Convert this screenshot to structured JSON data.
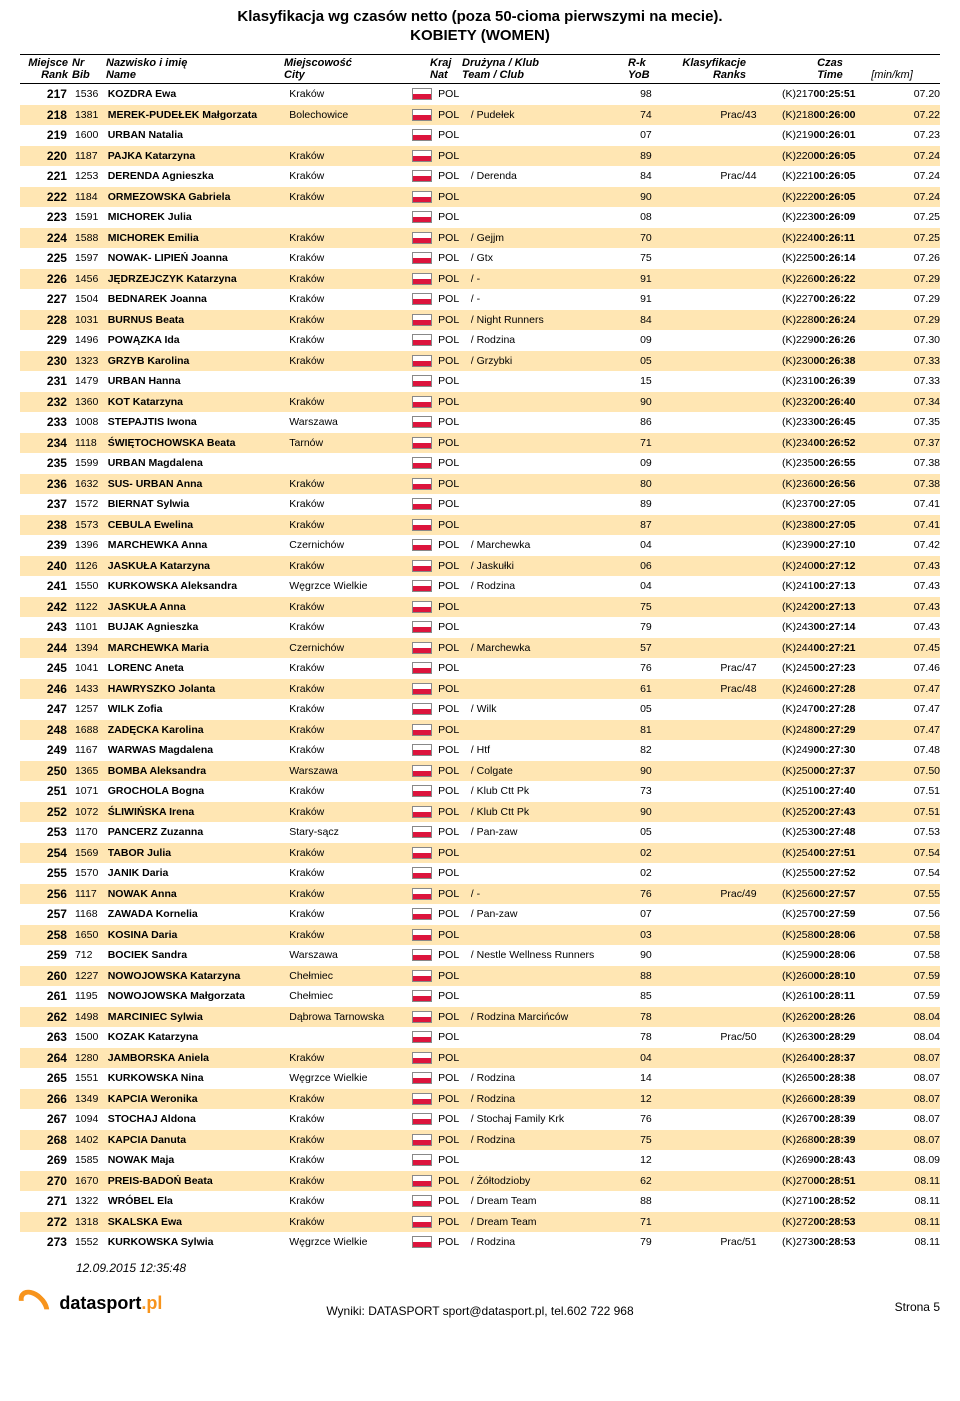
{
  "title": "Klasyfikacja wg czasów netto (poza 50-cioma pierwszymi na mecie).",
  "subtitle": "KOBIETY (WOMEN)",
  "columns": {
    "rank": {
      "pl": "Miejsce",
      "en": "Rank"
    },
    "bib": {
      "pl": "Nr",
      "en": "Bib"
    },
    "name": {
      "pl": "Nazwisko i imię",
      "en": "Name"
    },
    "city": {
      "pl": "Miejscowość",
      "en": "City"
    },
    "nat": {
      "pl": "Kraj",
      "en": "Nat"
    },
    "team": {
      "pl": "Drużyna / Klub",
      "en": "Team / Club"
    },
    "yob": {
      "pl": "R-k",
      "en": "YoB"
    },
    "ranks": {
      "pl": "Klasyfikacje",
      "en": "Ranks"
    },
    "time": {
      "pl": "Czas",
      "en": "Time"
    },
    "pace": "[min/km]"
  },
  "rows": [
    {
      "rank": 217,
      "bib": 1536,
      "name": "KOZDRA Ewa",
      "city": "Kraków",
      "nat": "POL",
      "team": "",
      "yob": "98",
      "ranks": "",
      "kcode": "(K)217",
      "time": "00:25:51",
      "pace": "07.20"
    },
    {
      "rank": 218,
      "bib": 1381,
      "name": "MEREK-PUDEŁEK Małgorzata",
      "city": "Bolechowice",
      "nat": "POL",
      "team": "/ Pudełek",
      "yob": "74",
      "ranks": "Prac/43",
      "kcode": "(K)218",
      "time": "00:26:00",
      "pace": "07.22"
    },
    {
      "rank": 219,
      "bib": 1600,
      "name": "URBAN Natalia",
      "city": "",
      "nat": "POL",
      "team": "",
      "yob": "07",
      "ranks": "",
      "kcode": "(K)219",
      "time": "00:26:01",
      "pace": "07.23"
    },
    {
      "rank": 220,
      "bib": 1187,
      "name": "PAJKA Katarzyna",
      "city": "Kraków",
      "nat": "POL",
      "team": "",
      "yob": "89",
      "ranks": "",
      "kcode": "(K)220",
      "time": "00:26:05",
      "pace": "07.24"
    },
    {
      "rank": 221,
      "bib": 1253,
      "name": "DERENDA Agnieszka",
      "city": "Kraków",
      "nat": "POL",
      "team": "/ Derenda",
      "yob": "84",
      "ranks": "Prac/44",
      "kcode": "(K)221",
      "time": "00:26:05",
      "pace": "07.24"
    },
    {
      "rank": 222,
      "bib": 1184,
      "name": "ORMEZOWSKA Gabriela",
      "city": "Kraków",
      "nat": "POL",
      "team": "",
      "yob": "90",
      "ranks": "",
      "kcode": "(K)222",
      "time": "00:26:05",
      "pace": "07.24"
    },
    {
      "rank": 223,
      "bib": 1591,
      "name": "MICHOREK Julia",
      "city": "",
      "nat": "POL",
      "team": "",
      "yob": "08",
      "ranks": "",
      "kcode": "(K)223",
      "time": "00:26:09",
      "pace": "07.25"
    },
    {
      "rank": 224,
      "bib": 1588,
      "name": "MICHOREK Emilia",
      "city": "Kraków",
      "nat": "POL",
      "team": "/ Gejjm",
      "yob": "70",
      "ranks": "",
      "kcode": "(K)224",
      "time": "00:26:11",
      "pace": "07.25"
    },
    {
      "rank": 225,
      "bib": 1597,
      "name": "NOWAK- LIPIEŃ Joanna",
      "city": "Kraków",
      "nat": "POL",
      "team": "/ Gtx",
      "yob": "75",
      "ranks": "",
      "kcode": "(K)225",
      "time": "00:26:14",
      "pace": "07.26"
    },
    {
      "rank": 226,
      "bib": 1456,
      "name": "JĘDRZEJCZYK Katarzyna",
      "city": "Kraków",
      "nat": "POL",
      "team": "/ -",
      "yob": "91",
      "ranks": "",
      "kcode": "(K)226",
      "time": "00:26:22",
      "pace": "07.29"
    },
    {
      "rank": 227,
      "bib": 1504,
      "name": "BEDNAREK Joanna",
      "city": "Kraków",
      "nat": "POL",
      "team": "/ -",
      "yob": "91",
      "ranks": "",
      "kcode": "(K)227",
      "time": "00:26:22",
      "pace": "07.29"
    },
    {
      "rank": 228,
      "bib": 1031,
      "name": "BURNUS Beata",
      "city": "Kraków",
      "nat": "POL",
      "team": "/ Night Runners",
      "yob": "84",
      "ranks": "",
      "kcode": "(K)228",
      "time": "00:26:24",
      "pace": "07.29"
    },
    {
      "rank": 229,
      "bib": 1496,
      "name": "POWĄZKA Ida",
      "city": "Kraków",
      "nat": "POL",
      "team": "/ Rodzina",
      "yob": "09",
      "ranks": "",
      "kcode": "(K)229",
      "time": "00:26:26",
      "pace": "07.30"
    },
    {
      "rank": 230,
      "bib": 1323,
      "name": "GRZYB Karolina",
      "city": "Kraków",
      "nat": "POL",
      "team": "/ Grzybki",
      "yob": "05",
      "ranks": "",
      "kcode": "(K)230",
      "time": "00:26:38",
      "pace": "07.33"
    },
    {
      "rank": 231,
      "bib": 1479,
      "name": "URBAN Hanna",
      "city": "",
      "nat": "POL",
      "team": "",
      "yob": "15",
      "ranks": "",
      "kcode": "(K)231",
      "time": "00:26:39",
      "pace": "07.33"
    },
    {
      "rank": 232,
      "bib": 1360,
      "name": "KOT Katarzyna",
      "city": "Kraków",
      "nat": "POL",
      "team": "",
      "yob": "90",
      "ranks": "",
      "kcode": "(K)232",
      "time": "00:26:40",
      "pace": "07.34"
    },
    {
      "rank": 233,
      "bib": 1008,
      "name": "STEPAJTIS Iwona",
      "city": "Warszawa",
      "nat": "POL",
      "team": "",
      "yob": "86",
      "ranks": "",
      "kcode": "(K)233",
      "time": "00:26:45",
      "pace": "07.35"
    },
    {
      "rank": 234,
      "bib": 1118,
      "name": "ŚWIĘTOCHOWSKA Beata",
      "city": "Tarnów",
      "nat": "POL",
      "team": "",
      "yob": "71",
      "ranks": "",
      "kcode": "(K)234",
      "time": "00:26:52",
      "pace": "07.37"
    },
    {
      "rank": 235,
      "bib": 1599,
      "name": "URBAN Magdalena",
      "city": "",
      "nat": "POL",
      "team": "",
      "yob": "09",
      "ranks": "",
      "kcode": "(K)235",
      "time": "00:26:55",
      "pace": "07.38"
    },
    {
      "rank": 236,
      "bib": 1632,
      "name": "SUS- URBAN Anna",
      "city": "Kraków",
      "nat": "POL",
      "team": "",
      "yob": "80",
      "ranks": "",
      "kcode": "(K)236",
      "time": "00:26:56",
      "pace": "07.38"
    },
    {
      "rank": 237,
      "bib": 1572,
      "name": "BIERNAT Sylwia",
      "city": "Kraków",
      "nat": "POL",
      "team": "",
      "yob": "89",
      "ranks": "",
      "kcode": "(K)237",
      "time": "00:27:05",
      "pace": "07.41"
    },
    {
      "rank": 238,
      "bib": 1573,
      "name": "CEBULA Ewelina",
      "city": "Kraków",
      "nat": "POL",
      "team": "",
      "yob": "87",
      "ranks": "",
      "kcode": "(K)238",
      "time": "00:27:05",
      "pace": "07.41"
    },
    {
      "rank": 239,
      "bib": 1396,
      "name": "MARCHEWKA Anna",
      "city": "Czernichów",
      "nat": "POL",
      "team": "/ Marchewka",
      "yob": "04",
      "ranks": "",
      "kcode": "(K)239",
      "time": "00:27:10",
      "pace": "07.42"
    },
    {
      "rank": 240,
      "bib": 1126,
      "name": "JASKUŁA Katarzyna",
      "city": "Kraków",
      "nat": "POL",
      "team": "/ Jaskułki",
      "yob": "06",
      "ranks": "",
      "kcode": "(K)240",
      "time": "00:27:12",
      "pace": "07.43"
    },
    {
      "rank": 241,
      "bib": 1550,
      "name": "KURKOWSKA Aleksandra",
      "city": "Węgrzce Wielkie",
      "nat": "POL",
      "team": "/ Rodzina",
      "yob": "04",
      "ranks": "",
      "kcode": "(K)241",
      "time": "00:27:13",
      "pace": "07.43"
    },
    {
      "rank": 242,
      "bib": 1122,
      "name": "JASKUŁA Anna",
      "city": "Kraków",
      "nat": "POL",
      "team": "",
      "yob": "75",
      "ranks": "",
      "kcode": "(K)242",
      "time": "00:27:13",
      "pace": "07.43"
    },
    {
      "rank": 243,
      "bib": 1101,
      "name": "BUJAK Agnieszka",
      "city": "Kraków",
      "nat": "POL",
      "team": "",
      "yob": "79",
      "ranks": "",
      "kcode": "(K)243",
      "time": "00:27:14",
      "pace": "07.43"
    },
    {
      "rank": 244,
      "bib": 1394,
      "name": "MARCHEWKA Maria",
      "city": "Czernichów",
      "nat": "POL",
      "team": "/ Marchewka",
      "yob": "57",
      "ranks": "",
      "kcode": "(K)244",
      "time": "00:27:21",
      "pace": "07.45"
    },
    {
      "rank": 245,
      "bib": 1041,
      "name": "LORENC Aneta",
      "city": "Kraków",
      "nat": "POL",
      "team": "",
      "yob": "76",
      "ranks": "Prac/47",
      "kcode": "(K)245",
      "time": "00:27:23",
      "pace": "07.46"
    },
    {
      "rank": 246,
      "bib": 1433,
      "name": "HAWRYSZKO Jolanta",
      "city": "Kraków",
      "nat": "POL",
      "team": "",
      "yob": "61",
      "ranks": "Prac/48",
      "kcode": "(K)246",
      "time": "00:27:28",
      "pace": "07.47"
    },
    {
      "rank": 247,
      "bib": 1257,
      "name": "WILK Zofia",
      "city": "Kraków",
      "nat": "POL",
      "team": "/ Wilk",
      "yob": "05",
      "ranks": "",
      "kcode": "(K)247",
      "time": "00:27:28",
      "pace": "07.47"
    },
    {
      "rank": 248,
      "bib": 1688,
      "name": "ZADĘCKA Karolina",
      "city": "Kraków",
      "nat": "POL",
      "team": "",
      "yob": "81",
      "ranks": "",
      "kcode": "(K)248",
      "time": "00:27:29",
      "pace": "07.47"
    },
    {
      "rank": 249,
      "bib": 1167,
      "name": "WARWAS Magdalena",
      "city": "Kraków",
      "nat": "POL",
      "team": "/ Htf",
      "yob": "82",
      "ranks": "",
      "kcode": "(K)249",
      "time": "00:27:30",
      "pace": "07.48"
    },
    {
      "rank": 250,
      "bib": 1365,
      "name": "BOMBA Aleksandra",
      "city": "Warszawa",
      "nat": "POL",
      "team": "/ Colgate",
      "yob": "90",
      "ranks": "",
      "kcode": "(K)250",
      "time": "00:27:37",
      "pace": "07.50"
    },
    {
      "rank": 251,
      "bib": 1071,
      "name": "GROCHOLA Bogna",
      "city": "Kraków",
      "nat": "POL",
      "team": "/ Klub Ctt Pk",
      "yob": "73",
      "ranks": "",
      "kcode": "(K)251",
      "time": "00:27:40",
      "pace": "07.51"
    },
    {
      "rank": 252,
      "bib": 1072,
      "name": "ŚLIWIŃSKA Irena",
      "city": "Kraków",
      "nat": "POL",
      "team": "/ Klub Ctt Pk",
      "yob": "90",
      "ranks": "",
      "kcode": "(K)252",
      "time": "00:27:43",
      "pace": "07.51"
    },
    {
      "rank": 253,
      "bib": 1170,
      "name": "PANCERZ Zuzanna",
      "city": "Stary-sącz",
      "nat": "POL",
      "team": "/ Pan-zaw",
      "yob": "05",
      "ranks": "",
      "kcode": "(K)253",
      "time": "00:27:48",
      "pace": "07.53"
    },
    {
      "rank": 254,
      "bib": 1569,
      "name": "TABOR Julia",
      "city": "Kraków",
      "nat": "POL",
      "team": "",
      "yob": "02",
      "ranks": "",
      "kcode": "(K)254",
      "time": "00:27:51",
      "pace": "07.54"
    },
    {
      "rank": 255,
      "bib": 1570,
      "name": "JANIK Daria",
      "city": "Kraków",
      "nat": "POL",
      "team": "",
      "yob": "02",
      "ranks": "",
      "kcode": "(K)255",
      "time": "00:27:52",
      "pace": "07.54"
    },
    {
      "rank": 256,
      "bib": 1117,
      "name": "NOWAK Anna",
      "city": "Kraków",
      "nat": "POL",
      "team": "/ -",
      "yob": "76",
      "ranks": "Prac/49",
      "kcode": "(K)256",
      "time": "00:27:57",
      "pace": "07.55"
    },
    {
      "rank": 257,
      "bib": 1168,
      "name": "ZAWADA Kornelia",
      "city": "Kraków",
      "nat": "POL",
      "team": "/ Pan-zaw",
      "yob": "07",
      "ranks": "",
      "kcode": "(K)257",
      "time": "00:27:59",
      "pace": "07.56"
    },
    {
      "rank": 258,
      "bib": 1650,
      "name": "KOSINA Daria",
      "city": "Kraków",
      "nat": "POL",
      "team": "",
      "yob": "03",
      "ranks": "",
      "kcode": "(K)258",
      "time": "00:28:06",
      "pace": "07.58"
    },
    {
      "rank": 259,
      "bib": 712,
      "name": "BOCIEK Sandra",
      "city": "Warszawa",
      "nat": "POL",
      "team": "/ Nestle Wellness Runners",
      "yob": "90",
      "ranks": "",
      "kcode": "(K)259",
      "time": "00:28:06",
      "pace": "07.58"
    },
    {
      "rank": 260,
      "bib": 1227,
      "name": "NOWOJOWSKA Katarzyna",
      "city": "Chełmiec",
      "nat": "POL",
      "team": "",
      "yob": "88",
      "ranks": "",
      "kcode": "(K)260",
      "time": "00:28:10",
      "pace": "07.59"
    },
    {
      "rank": 261,
      "bib": 1195,
      "name": "NOWOJOWSKA Małgorzata",
      "city": "Chełmiec",
      "nat": "POL",
      "team": "",
      "yob": "85",
      "ranks": "",
      "kcode": "(K)261",
      "time": "00:28:11",
      "pace": "07.59"
    },
    {
      "rank": 262,
      "bib": 1498,
      "name": "MARCINIEC Sylwia",
      "city": "Dąbrowa Tarnowska",
      "nat": "POL",
      "team": "/ Rodzina Marcińców",
      "yob": "78",
      "ranks": "",
      "kcode": "(K)262",
      "time": "00:28:26",
      "pace": "08.04"
    },
    {
      "rank": 263,
      "bib": 1500,
      "name": "KOZAK Katarzyna",
      "city": "",
      "nat": "POL",
      "team": "",
      "yob": "78",
      "ranks": "Prac/50",
      "kcode": "(K)263",
      "time": "00:28:29",
      "pace": "08.04"
    },
    {
      "rank": 264,
      "bib": 1280,
      "name": "JAMBORSKA Aniela",
      "city": "Kraków",
      "nat": "POL",
      "team": "",
      "yob": "04",
      "ranks": "",
      "kcode": "(K)264",
      "time": "00:28:37",
      "pace": "08.07"
    },
    {
      "rank": 265,
      "bib": 1551,
      "name": "KURKOWSKA Nina",
      "city": "Węgrzce Wielkie",
      "nat": "POL",
      "team": "/ Rodzina",
      "yob": "14",
      "ranks": "",
      "kcode": "(K)265",
      "time": "00:28:38",
      "pace": "08.07"
    },
    {
      "rank": 266,
      "bib": 1349,
      "name": "KAPCIA Weronika",
      "city": "Kraków",
      "nat": "POL",
      "team": "/ Rodzina",
      "yob": "12",
      "ranks": "",
      "kcode": "(K)266",
      "time": "00:28:39",
      "pace": "08.07"
    },
    {
      "rank": 267,
      "bib": 1094,
      "name": "STOCHAJ Aldona",
      "city": "Kraków",
      "nat": "POL",
      "team": "/ Stochaj Family Krk",
      "yob": "76",
      "ranks": "",
      "kcode": "(K)267",
      "time": "00:28:39",
      "pace": "08.07"
    },
    {
      "rank": 268,
      "bib": 1402,
      "name": "KAPCIA Danuta",
      "city": "Kraków",
      "nat": "POL",
      "team": "/ Rodzina",
      "yob": "75",
      "ranks": "",
      "kcode": "(K)268",
      "time": "00:28:39",
      "pace": "08.07"
    },
    {
      "rank": 269,
      "bib": 1585,
      "name": "NOWAK Maja",
      "city": "Kraków",
      "nat": "POL",
      "team": "",
      "yob": "12",
      "ranks": "",
      "kcode": "(K)269",
      "time": "00:28:43",
      "pace": "08.09"
    },
    {
      "rank": 270,
      "bib": 1670,
      "name": "PREIS-BADOŃ Beata",
      "city": "Kraków",
      "nat": "POL",
      "team": "/ Żółtodzioby",
      "yob": "62",
      "ranks": "",
      "kcode": "(K)270",
      "time": "00:28:51",
      "pace": "08.11"
    },
    {
      "rank": 271,
      "bib": 1322,
      "name": "WRÓBEL Ela",
      "city": "Kraków",
      "nat": "POL",
      "team": "/ Dream Team",
      "yob": "88",
      "ranks": "",
      "kcode": "(K)271",
      "time": "00:28:52",
      "pace": "08.11"
    },
    {
      "rank": 272,
      "bib": 1318,
      "name": "SKALSKA Ewa",
      "city": "Kraków",
      "nat": "POL",
      "team": "/ Dream Team",
      "yob": "71",
      "ranks": "",
      "kcode": "(K)272",
      "time": "00:28:53",
      "pace": "08.11"
    },
    {
      "rank": 273,
      "bib": 1552,
      "name": "KURKOWSKA Sylwia",
      "city": "Węgrzce Wielkie",
      "nat": "POL",
      "team": "/ Rodzina",
      "yob": "79",
      "ranks": "Prac/51",
      "kcode": "(K)273",
      "time": "00:28:53",
      "pace": "08.11"
    }
  ],
  "footer": {
    "datetime": "12.09.2015 12:35:48",
    "page": "Strona 5",
    "source": "Wyniki: DATASPORT sport@datasport.pl, tel.602 722 968",
    "logo_text": "datasport",
    "logo_suffix": ".pl"
  },
  "style": {
    "alt_row_bg": "#ffe6b3",
    "flag_top": "#ffffff",
    "flag_bottom": "#dc143c",
    "logo_accent": "#f7941d"
  }
}
